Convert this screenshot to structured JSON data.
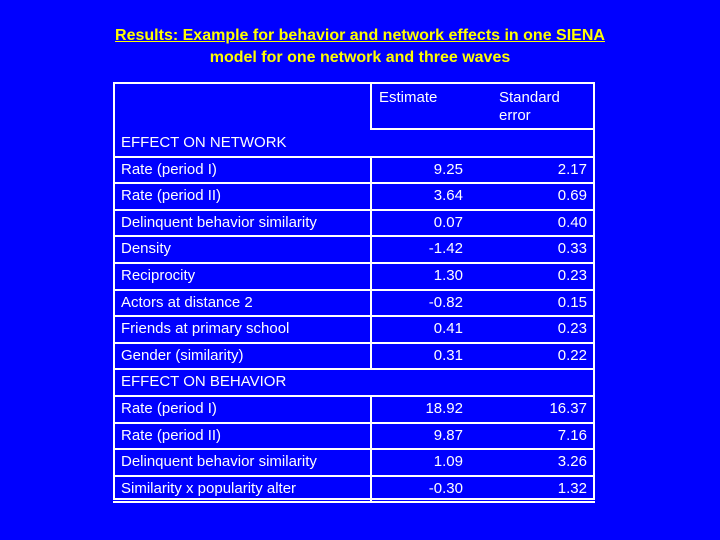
{
  "title": {
    "line1": "Results: Example for behavior and network effects in one SIENA",
    "line2": "model for one network and three waves"
  },
  "columns": {
    "estimate": "Estimate",
    "se_line1": "Standard",
    "se_line2": "error"
  },
  "sections": [
    {
      "heading": "EFFECT ON NETWORK",
      "rows": [
        {
          "label": "Rate (period I)",
          "estimate": "9.25",
          "se": "2.17"
        },
        {
          "label": "Rate (period II)",
          "estimate": "3.64",
          "se": "0.69"
        },
        {
          "label": "Delinquent behavior similarity",
          "estimate": "0.07",
          "se": "0.40"
        },
        {
          "label": "Density",
          "estimate": "-1.42",
          "se": "0.33"
        },
        {
          "label": "Reciprocity",
          "estimate": "1.30",
          "se": "0.23"
        },
        {
          "label": "Actors at distance 2",
          "estimate": "-0.82",
          "se": "0.15"
        },
        {
          "label": "Friends at primary school",
          "estimate": "0.41",
          "se": "0.23"
        },
        {
          "label": "Gender (similarity)",
          "estimate": "0.31",
          "se": "0.22"
        }
      ]
    },
    {
      "heading": "EFFECT ON BEHAVIOR",
      "rows": [
        {
          "label": "Rate (period I)",
          "estimate": "18.92",
          "se": "16.37"
        },
        {
          "label": "Rate (period II)",
          "estimate": "9.87",
          "se": "7.16"
        },
        {
          "label": "Delinquent behavior similarity",
          "estimate": "1.09",
          "se": "3.26"
        },
        {
          "label": "Similarity x popularity alter",
          "estimate": "-0.30",
          "se": "1.32"
        }
      ]
    }
  ],
  "colors": {
    "background": "#0000ff",
    "title": "#ffff00",
    "text": "#ffffff"
  }
}
